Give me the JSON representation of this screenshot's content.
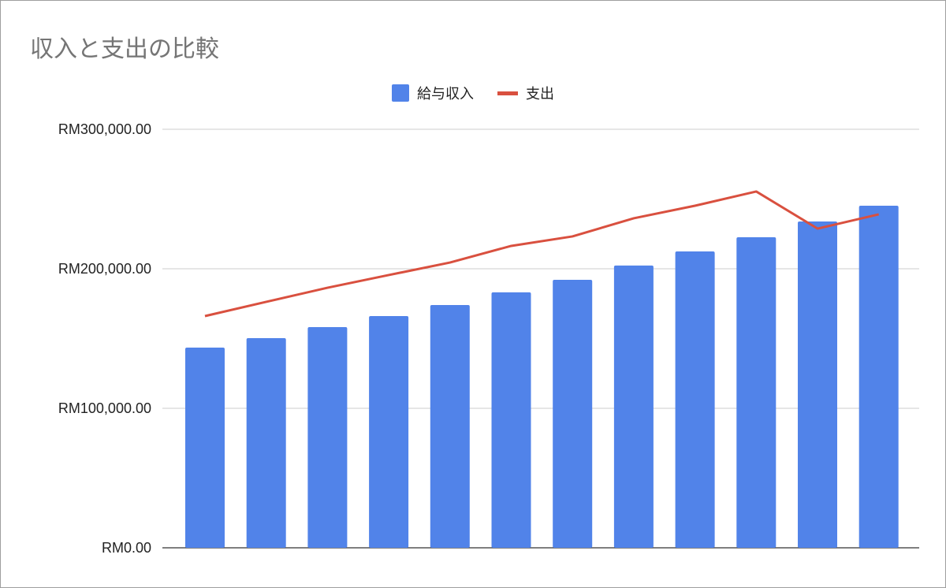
{
  "chart_data": {
    "type": "bar+line",
    "title": "収入と支出の比較",
    "xlabel": "",
    "ylabel": "",
    "ylim": [
      0,
      300000
    ],
    "yticks": [
      "RM0.00",
      "RM100,000.00",
      "RM200,000.00",
      "RM300,000.00"
    ],
    "ytick_values": [
      0,
      100000,
      200000,
      300000
    ],
    "grid": true,
    "legend_position": "top",
    "series": [
      {
        "name": "給与収入",
        "type": "bar",
        "color": "#5183e9",
        "values": [
          143500,
          150300,
          158200,
          166100,
          174000,
          183100,
          192100,
          202300,
          212400,
          222600,
          233900,
          245200
        ]
      },
      {
        "name": "支出",
        "type": "line",
        "color": "#d9503f",
        "values": [
          166100,
          176300,
          186400,
          195500,
          204500,
          216400,
          223200,
          236200,
          245200,
          255400,
          228800,
          239000
        ]
      }
    ]
  }
}
